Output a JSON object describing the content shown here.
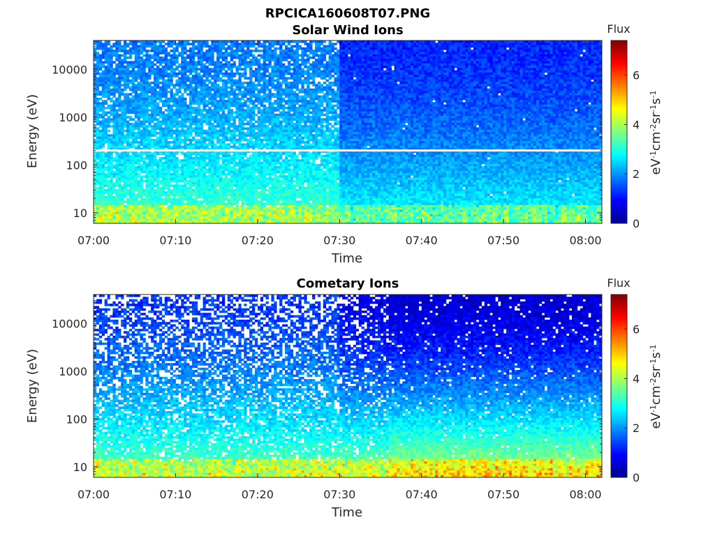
{
  "figure": {
    "title": "RPCICA160608T07.PNG"
  },
  "colorbar": {
    "colormap": "jet",
    "range": [
      0,
      7.4
    ],
    "ticks": [
      "0",
      "2",
      "4",
      "6"
    ],
    "tick_values": [
      0,
      2,
      4,
      6
    ]
  },
  "chart_data": [
    {
      "type": "heatmap",
      "title": "Solar Wind Ions",
      "xlabel": "Time",
      "ylabel": "Energy (eV)",
      "y_scale": "log",
      "ylim": [
        6,
        40000
      ],
      "xlim": [
        "07:00",
        "08:02"
      ],
      "x_ticks": [
        "07:00",
        "07:10",
        "07:20",
        "07:30",
        "07:40",
        "07:50",
        "08:00"
      ],
      "y_ticks": [
        "10",
        "100",
        "1000",
        "10000"
      ],
      "y_tick_values": [
        10,
        100,
        1000,
        10000
      ],
      "colorbar_title": "Flux",
      "colorbar_label": "eV-1cm-2sr-1s-1",
      "colorbar_label_parts": [
        [
          "eV",
          ""
        ],
        [
          "-1",
          "sup"
        ],
        [
          "cm",
          ""
        ],
        [
          "-2",
          "sup"
        ],
        [
          "sr",
          ""
        ],
        [
          "-1",
          "sup"
        ],
        [
          "s",
          ""
        ],
        [
          "-1",
          "sup"
        ]
      ],
      "annotation": "horizontal white line near 200 eV",
      "regimes": [
        {
          "time_range": [
            "07:00",
            "07:30"
          ],
          "high_energy_flux": 1.8,
          "low_energy_flux": 3.4,
          "gap_fraction": 0.18
        },
        {
          "time_range": [
            "07:30",
            "08:02"
          ],
          "high_energy_flux": 1.2,
          "low_energy_flux": 2.9,
          "gap_fraction": 0.01
        }
      ]
    },
    {
      "type": "heatmap",
      "title": "Cometary Ions",
      "xlabel": "Time",
      "ylabel": "Energy (eV)",
      "y_scale": "log",
      "ylim": [
        6,
        40000
      ],
      "xlim": [
        "07:00",
        "08:02"
      ],
      "x_ticks": [
        "07:00",
        "07:10",
        "07:20",
        "07:30",
        "07:40",
        "07:50",
        "08:00"
      ],
      "y_ticks": [
        "10",
        "100",
        "1000",
        "10000"
      ],
      "y_tick_values": [
        10,
        100,
        1000,
        10000
      ],
      "colorbar_title": "Flux",
      "colorbar_label": "eV-1cm-2sr-1s-1",
      "colorbar_label_parts": [
        [
          "eV",
          ""
        ],
        [
          "-1",
          "sup"
        ],
        [
          "cm",
          ""
        ],
        [
          "-2",
          "sup"
        ],
        [
          "sr",
          ""
        ],
        [
          "-1",
          "sup"
        ],
        [
          "s",
          ""
        ],
        [
          "-1",
          "sup"
        ]
      ],
      "regimes": [
        {
          "time_range": [
            "07:00",
            "07:30"
          ],
          "high_energy_flux": 1.3,
          "low_energy_flux": 3.6,
          "gap_fraction": 0.45
        },
        {
          "time_range": [
            "07:30",
            "07:36"
          ],
          "high_energy_flux": 0.8,
          "low_energy_flux": 3.8,
          "gap_fraction": 0.3
        },
        {
          "time_range": [
            "07:36",
            "08:02"
          ],
          "high_energy_flux": 0.6,
          "low_energy_flux": 4.2,
          "gap_fraction": 0.08
        }
      ]
    }
  ]
}
